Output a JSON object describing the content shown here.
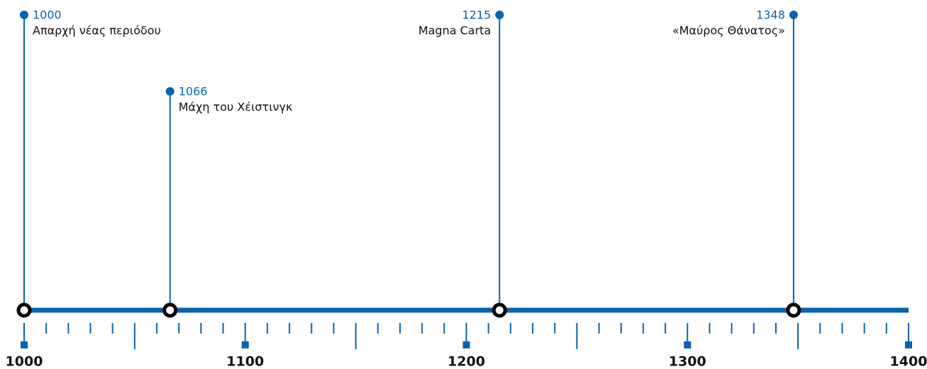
{
  "chart_data": {
    "type": "timeline",
    "color": "#0b62ae",
    "xlim": [
      1000,
      1400
    ],
    "xticks": [
      1000,
      1100,
      1200,
      1300,
      1400
    ],
    "xmidticks": [
      1050,
      1150,
      1250,
      1350
    ],
    "xminorticks": [
      1010,
      1020,
      1030,
      1040,
      1060,
      1070,
      1080,
      1090,
      1110,
      1120,
      1130,
      1140,
      1160,
      1170,
      1180,
      1190,
      1210,
      1220,
      1230,
      1240,
      1260,
      1270,
      1280,
      1290,
      1310,
      1320,
      1330,
      1340,
      1360,
      1370,
      1380,
      1390
    ],
    "x": [
      1000,
      1066,
      1215,
      1348
    ],
    "labels": [
      "Απαρχή νέας περιόδου",
      "Μάχη του Χέιστινγκ",
      "Magna Carta",
      "«Μαύρος Θάνατος»"
    ]
  }
}
